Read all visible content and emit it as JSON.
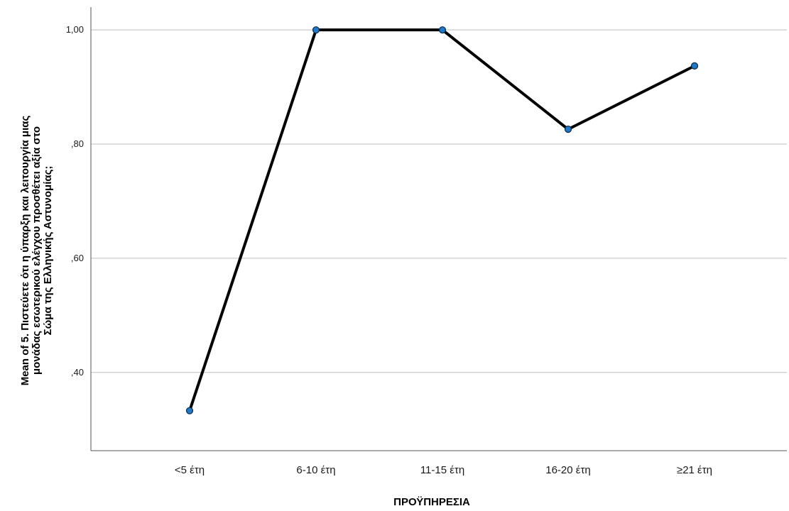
{
  "chart_data": {
    "type": "line",
    "categories": [
      "<5 έτη",
      "6-10 έτη",
      "11-15 έτη",
      "16-20 έτη",
      "≥21 έτη"
    ],
    "values": [
      0.333,
      1.0,
      1.0,
      0.826,
      0.937
    ],
    "xlabel": "ΠΡΟΫΠΗΡΕΣΙΑ",
    "ylabel_lines": [
      "Mean of 5. Πιστεύετε ότι η ύπαρξη και λειτουργία μιας",
      "μονάδας εσωτερικού ελέγχου προσθέτει αξία στο",
      "Σώμα της Ελληνικής Αστυνομίας;"
    ],
    "ylim": [
      0.263,
      1.04
    ],
    "yticks": [
      0.4,
      0.6,
      0.8,
      1.0
    ],
    "ytick_labels": [
      ",40",
      ",60",
      ",80",
      "1,00"
    ],
    "grid": true,
    "colors": {
      "line": "#000000",
      "marker_fill": "#1f78c8",
      "marker_stroke": "#0d2a45",
      "grid": "#bdbdbd",
      "axis": "#555555"
    }
  }
}
